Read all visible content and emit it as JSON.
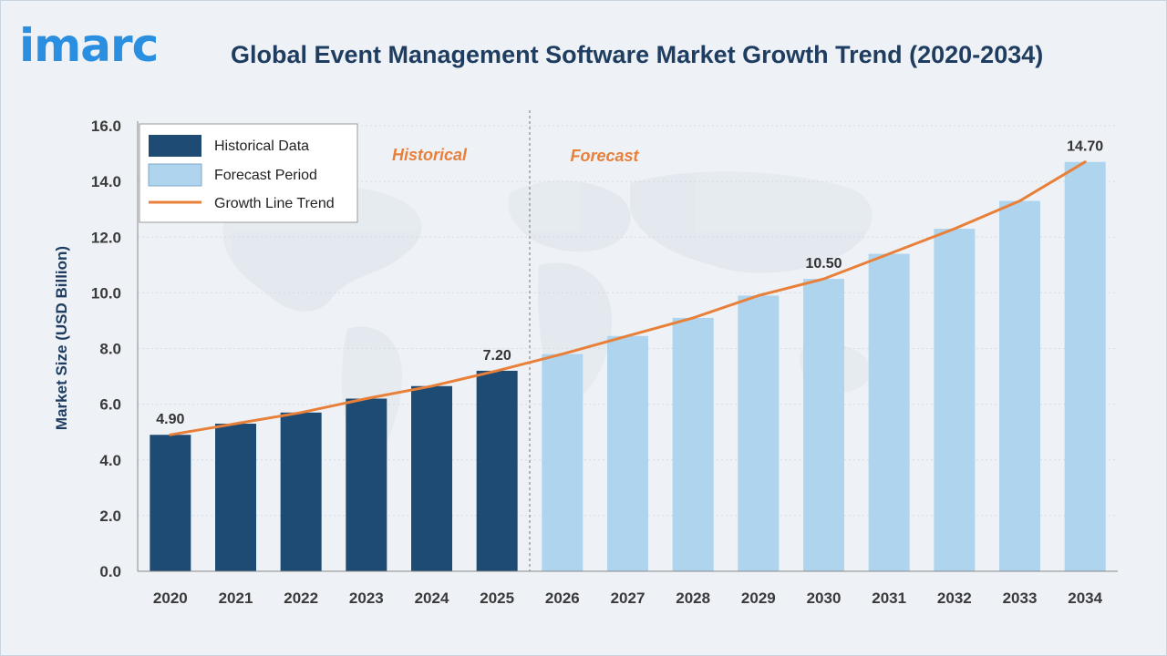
{
  "header": {
    "logo": "imarc",
    "title": "Global Event Management Software Market Growth Trend (2020-2034)"
  },
  "colors": {
    "historical": "#1e4b73",
    "forecast": "#aed4ee",
    "trend": "#e8803a",
    "axis_text": "#3a3a3a",
    "title": "#1f3d60"
  },
  "chart_data": {
    "type": "bar",
    "title": "Global Event Management Software Market Growth Trend (2020-2034)",
    "xlabel": "",
    "ylabel": "Market Size (USD Billion)",
    "ylim": [
      0,
      16
    ],
    "yticks": [
      "0.0",
      "2.0",
      "4.0",
      "6.0",
      "8.0",
      "10.0",
      "12.0",
      "14.0",
      "16.0"
    ],
    "grid": true,
    "legend_position": "top-left",
    "categories": [
      "2020",
      "2021",
      "2022",
      "2023",
      "2024",
      "2025",
      "2026",
      "2027",
      "2028",
      "2029",
      "2030",
      "2031",
      "2032",
      "2033",
      "2034"
    ],
    "series": [
      {
        "name": "Historical Data",
        "type": "bar",
        "values": [
          4.9,
          5.3,
          5.7,
          6.2,
          6.65,
          7.2,
          null,
          null,
          null,
          null,
          null,
          null,
          null,
          null,
          null
        ]
      },
      {
        "name": "Forecast Period",
        "type": "bar",
        "values": [
          null,
          null,
          null,
          null,
          null,
          null,
          7.8,
          8.45,
          9.1,
          9.9,
          10.5,
          11.4,
          12.3,
          13.3,
          14.7
        ]
      },
      {
        "name": "Growth Line Trend",
        "type": "line",
        "values": [
          4.9,
          5.3,
          5.7,
          6.2,
          6.65,
          7.2,
          7.8,
          8.45,
          9.1,
          9.9,
          10.5,
          11.4,
          12.3,
          13.3,
          14.7
        ]
      }
    ],
    "data_labels": [
      {
        "category": "2020",
        "text": "4.90"
      },
      {
        "category": "2025",
        "text": "7.20"
      },
      {
        "category": "2030",
        "text": "10.50"
      },
      {
        "category": "2034",
        "text": "14.70"
      }
    ],
    "annotations": {
      "historical": "Historical",
      "forecast": "Forecast"
    }
  }
}
